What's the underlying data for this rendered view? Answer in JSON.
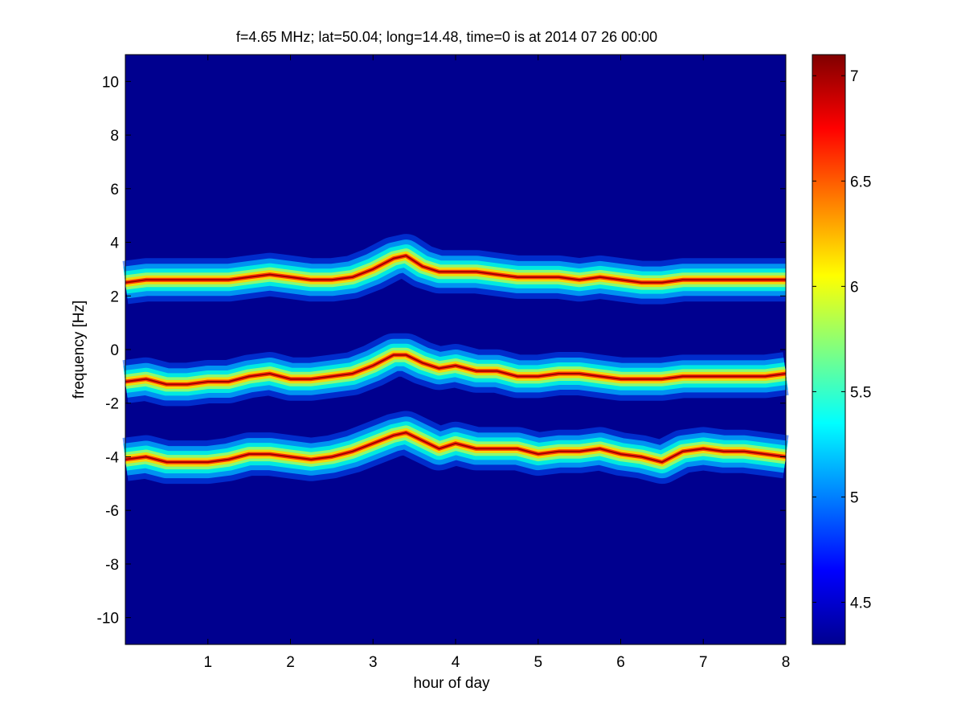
{
  "chart_data": {
    "type": "heatmap",
    "title": "f=4.65 MHz;  lat=50.04; long=14.48, time=0 is at 2014 07 26 00:00",
    "xlabel": "hour of day",
    "ylabel": "frequency [Hz]",
    "xlim": [
      0,
      8
    ],
    "ylim": [
      -11,
      11
    ],
    "x_ticks": [
      1,
      2,
      3,
      4,
      5,
      6,
      7,
      8
    ],
    "y_ticks": [
      10,
      8,
      6,
      4,
      2,
      0,
      -2,
      -4,
      -6,
      -8,
      -10
    ],
    "colormap": "jet",
    "background_color": "#00008f",
    "colorbar": {
      "range": [
        4.3,
        7.1
      ],
      "ticks": [
        4.5,
        5,
        5.5,
        6,
        6.5,
        7
      ]
    },
    "bands": [
      {
        "hour": [
          0,
          0.25,
          0.5,
          0.75,
          1.0,
          1.25,
          1.5,
          1.75,
          2.0,
          2.25,
          2.5,
          2.75,
          3.0,
          3.25,
          3.4,
          3.6,
          3.8,
          4.0,
          4.25,
          4.5,
          4.75,
          5.0,
          5.25,
          5.5,
          5.75,
          6.0,
          6.25,
          6.5,
          6.75,
          7.0,
          7.25,
          7.5,
          7.75,
          8.0
        ],
        "center": [
          2.5,
          2.6,
          2.6,
          2.6,
          2.6,
          2.6,
          2.7,
          2.8,
          2.7,
          2.6,
          2.6,
          2.7,
          3.0,
          3.4,
          3.5,
          3.1,
          2.9,
          2.9,
          2.9,
          2.8,
          2.7,
          2.7,
          2.7,
          2.6,
          2.7,
          2.6,
          2.5,
          2.5,
          2.6,
          2.6,
          2.6,
          2.6,
          2.6,
          2.6
        ]
      },
      {
        "hour": [
          0,
          0.25,
          0.5,
          0.75,
          1.0,
          1.25,
          1.5,
          1.75,
          2.0,
          2.25,
          2.5,
          2.75,
          3.0,
          3.25,
          3.4,
          3.6,
          3.8,
          4.0,
          4.25,
          4.5,
          4.75,
          5.0,
          5.25,
          5.5,
          5.75,
          6.0,
          6.25,
          6.5,
          6.75,
          7.0,
          7.25,
          7.5,
          7.75,
          8.0
        ],
        "center": [
          -1.2,
          -1.1,
          -1.3,
          -1.3,
          -1.2,
          -1.2,
          -1.0,
          -0.9,
          -1.1,
          -1.1,
          -1.0,
          -0.9,
          -0.6,
          -0.2,
          -0.2,
          -0.5,
          -0.7,
          -0.6,
          -0.8,
          -0.8,
          -1.0,
          -1.0,
          -0.9,
          -0.9,
          -1.0,
          -1.1,
          -1.1,
          -1.1,
          -1.0,
          -1.0,
          -1.0,
          -1.0,
          -1.0,
          -0.9
        ]
      },
      {
        "hour": [
          0,
          0.25,
          0.5,
          0.75,
          1.0,
          1.25,
          1.5,
          1.75,
          2.0,
          2.25,
          2.5,
          2.75,
          3.0,
          3.25,
          3.4,
          3.6,
          3.8,
          4.0,
          4.25,
          4.5,
          4.75,
          5.0,
          5.25,
          5.5,
          5.75,
          6.0,
          6.25,
          6.5,
          6.75,
          7.0,
          7.25,
          7.5,
          7.75,
          8.0
        ],
        "center": [
          -4.1,
          -4.0,
          -4.2,
          -4.2,
          -4.2,
          -4.1,
          -3.9,
          -3.9,
          -4.0,
          -4.1,
          -4.0,
          -3.8,
          -3.5,
          -3.2,
          -3.1,
          -3.4,
          -3.7,
          -3.5,
          -3.7,
          -3.7,
          -3.7,
          -3.9,
          -3.8,
          -3.8,
          -3.7,
          -3.9,
          -4.0,
          -4.2,
          -3.8,
          -3.7,
          -3.8,
          -3.8,
          -3.9,
          -4.0
        ]
      }
    ]
  }
}
